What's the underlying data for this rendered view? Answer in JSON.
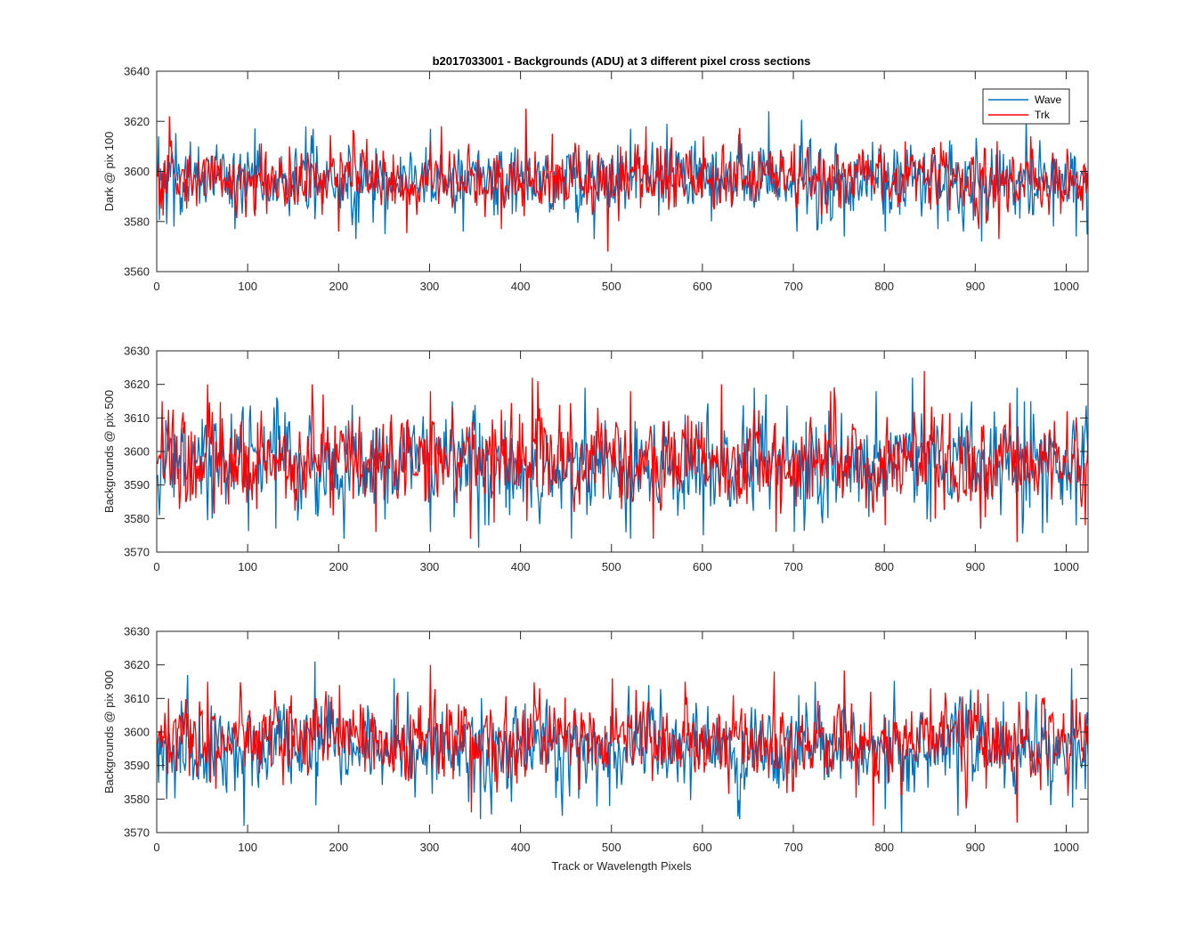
{
  "figure": {
    "title": "b2017033001 - Backgrounds (ADU) at 3 different pixel cross sections",
    "xlabel": "Track or Wavelength Pixels"
  },
  "legend": {
    "entries": [
      {
        "label": "Wave",
        "color": "#0072BD"
      },
      {
        "label": "Trk",
        "color": "#FF0000"
      }
    ],
    "placement": "top-right"
  },
  "chart_data": [
    {
      "type": "line",
      "title": "b2017033001 - Backgrounds (ADU) at 3 different pixel cross sections",
      "xlabel": "",
      "ylabel": "Dark @ pix 100",
      "xlim": [
        0,
        1024
      ],
      "ylim": [
        3560,
        3640
      ],
      "xticks": [
        0,
        100,
        200,
        300,
        400,
        500,
        600,
        700,
        800,
        900,
        1000
      ],
      "yticks": [
        3560,
        3580,
        3600,
        3620,
        3640
      ],
      "grid": false,
      "legend": "top-right",
      "series": [
        {
          "name": "Wave",
          "color": "#0072BD",
          "n_points": 1024,
          "baseline": 3597,
          "noise_sd": 7,
          "x": [
            1,
            10,
            18,
            85,
            163,
            171,
            218,
            250,
            300,
            336,
            405,
            480,
            520,
            560,
            654,
            672,
            703,
            730,
            755,
            800,
            858,
            906,
            955,
            985,
            1010
          ],
          "values": [
            3614,
            3579,
            3578,
            3577,
            3618,
            3617,
            3573,
            3575,
            3617,
            3576,
            3610,
            3573,
            3617,
            3619,
            3608,
            3624,
            3576,
            3579,
            3574,
            3576,
            3577,
            3572,
            3621,
            3578,
            3574
          ]
        },
        {
          "name": "Trk",
          "color": "#FF0000",
          "n_points": 1024,
          "baseline": 3597,
          "noise_sd": 6,
          "x": [
            5,
            13,
            30,
            120,
            199,
            230,
            300,
            378,
            405,
            434,
            495,
            537,
            600,
            700,
            822,
            903,
            925,
            960,
            1000
          ],
          "values": [
            3600,
            3622,
            3588,
            3583,
            3576,
            3613,
            3612,
            3577,
            3625,
            3615,
            3568,
            3618,
            3614,
            3611,
            3612,
            3577,
            3573,
            3614,
            3609
          ]
        }
      ]
    },
    {
      "type": "line",
      "title": "",
      "xlabel": "",
      "ylabel": "Backgrounds @ pix 500",
      "xlim": [
        0,
        1024
      ],
      "ylim": [
        3570,
        3630
      ],
      "xticks": [
        0,
        100,
        200,
        300,
        400,
        500,
        600,
        700,
        800,
        900,
        1000
      ],
      "yticks": [
        3570,
        3580,
        3590,
        3600,
        3610,
        3620,
        3630
      ],
      "grid": false,
      "series": [
        {
          "name": "Wave",
          "color": "#0072BD",
          "n_points": 1024,
          "baseline": 3596,
          "noise_sd": 7,
          "x": [
            2,
            60,
            130,
            205,
            300,
            360,
            455,
            470,
            520,
            600,
            656,
            700,
            790,
            830,
            850,
            905,
            945,
            960,
            1010
          ],
          "values": [
            3581,
            3580,
            3577,
            3574,
            3576,
            3578,
            3574,
            3619,
            3574,
            3575,
            3619,
            3576,
            3618,
            3622,
            3579,
            3577,
            3619,
            3615,
            3578
          ]
        },
        {
          "name": "Trk",
          "color": "#FF0000",
          "n_points": 1024,
          "baseline": 3597,
          "noise_sd": 6.5,
          "x": [
            5,
            55,
            170,
            240,
            300,
            344,
            412,
            418,
            520,
            545,
            620,
            680,
            740,
            800,
            843,
            855,
            905,
            945,
            1000,
            1020
          ],
          "values": [
            3615,
            3620,
            3620,
            3576,
            3618,
            3574,
            3622,
            3621,
            3618,
            3574,
            3620,
            3576,
            3618,
            3578,
            3624,
            3580,
            3577,
            3573,
            3612,
            3578
          ]
        }
      ]
    },
    {
      "type": "line",
      "title": "",
      "xlabel": "Track or Wavelength Pixels",
      "ylabel": "Backgrounds @ pix 900",
      "xlim": [
        0,
        1024
      ],
      "ylim": [
        3570,
        3630
      ],
      "xticks": [
        0,
        100,
        200,
        300,
        400,
        500,
        600,
        700,
        800,
        900,
        1000
      ],
      "yticks": [
        3570,
        3580,
        3590,
        3600,
        3610,
        3620,
        3630
      ],
      "grid": false,
      "series": [
        {
          "name": "Wave",
          "color": "#0072BD",
          "n_points": 1024,
          "baseline": 3595,
          "noise_sd": 6.5,
          "x": [
            10,
            33,
            95,
            173,
            260,
            355,
            445,
            540,
            640,
            705,
            800,
            818,
            880,
            955,
            1005,
            1020
          ],
          "values": [
            3580,
            3617,
            3572,
            3621,
            3616,
            3574,
            3575,
            3614,
            3574,
            3611,
            3577,
            3570,
            3575,
            3612,
            3619,
            3583
          ]
        },
        {
          "name": "Trk",
          "color": "#FF0000",
          "n_points": 1024,
          "baseline": 3598,
          "noise_sd": 6,
          "x": [
            12,
            55,
            200,
            300,
            345,
            420,
            500,
            580,
            678,
            787,
            850,
            945,
            1010
          ],
          "values": [
            3610,
            3615,
            3614,
            3620,
            3576,
            3613,
            3616,
            3615,
            3618,
            3572,
            3613,
            3573,
            3610
          ]
        }
      ]
    }
  ]
}
